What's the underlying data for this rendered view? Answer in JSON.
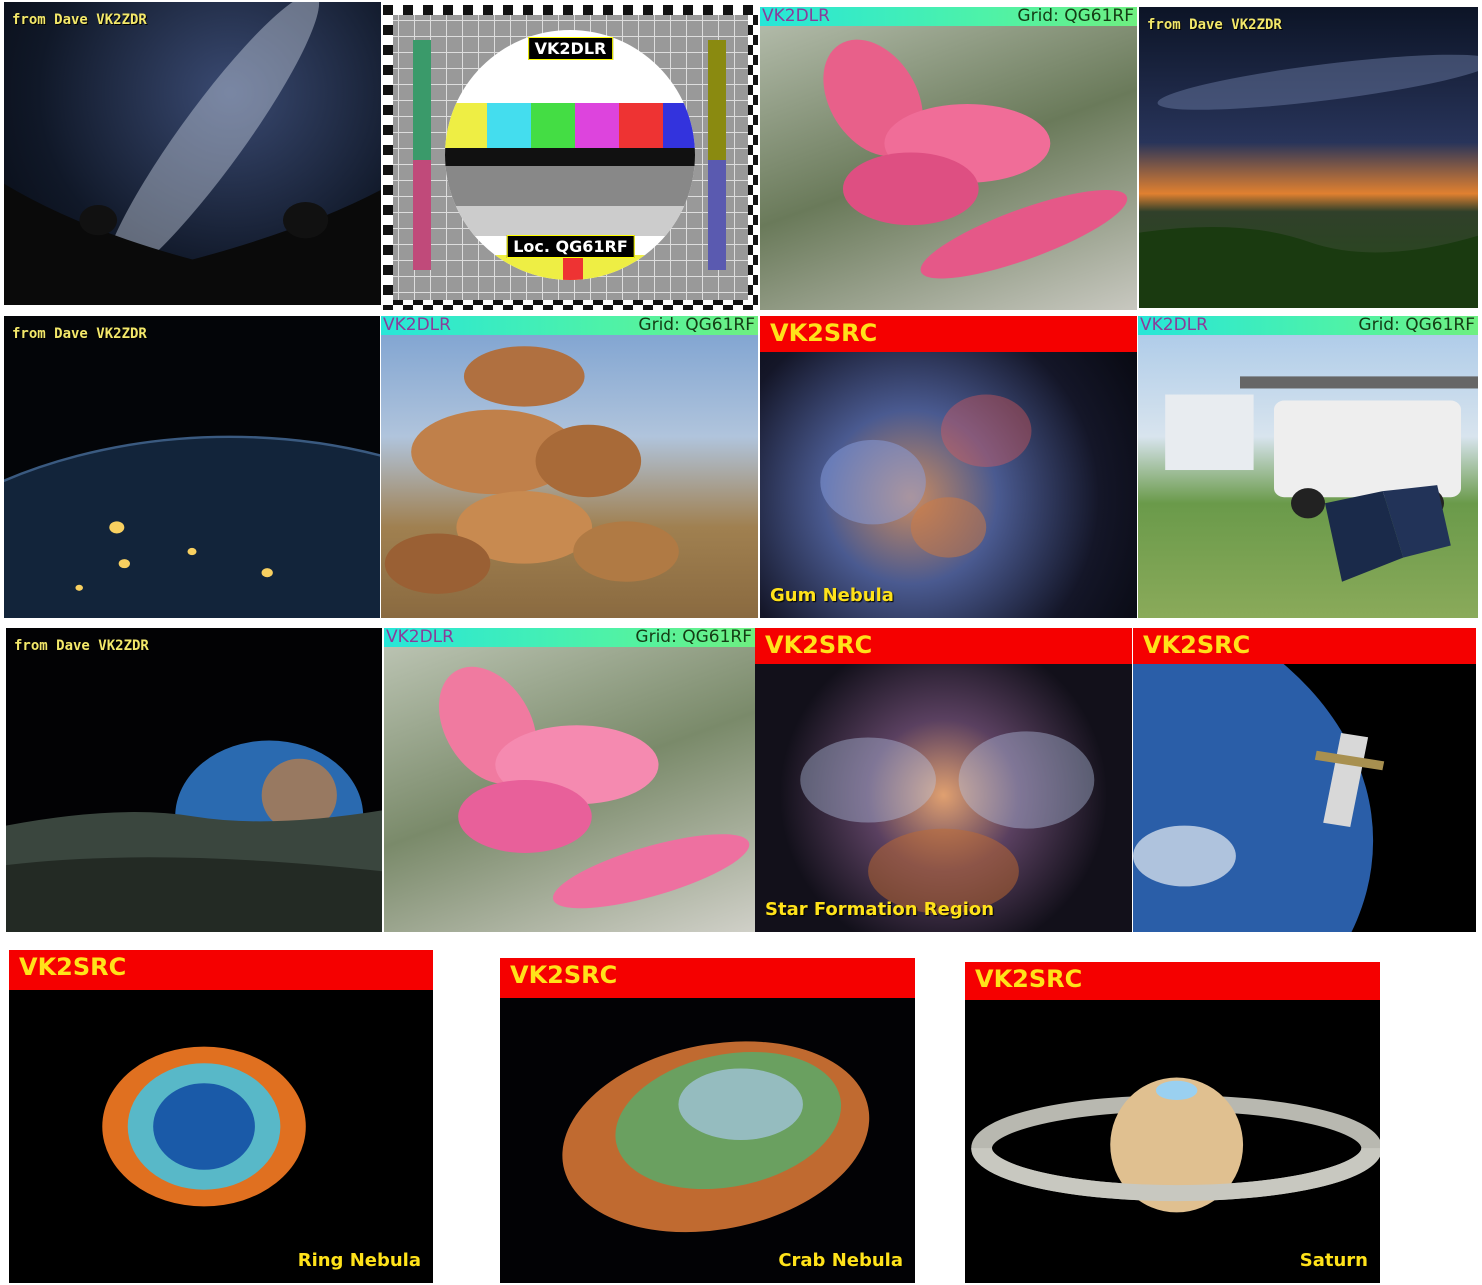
{
  "tiles": [
    {
      "label": "from Dave VK2ZDR"
    },
    {
      "label": "VK2DLR",
      "locator": "Loc. QG61RF"
    },
    {
      "callsign": "VK2DLR",
      "grid": "Grid: QG61RF"
    },
    {
      "label": "from Dave VK2ZDR"
    },
    {
      "label": "from Dave VK2ZDR"
    },
    {
      "callsign": "VK2DLR",
      "grid": "Grid: QG61RF"
    },
    {
      "callsign": "VK2SRC",
      "caption": "Gum Nebula"
    },
    {
      "callsign": "VK2DLR",
      "grid": "Grid: QG61RF"
    },
    {
      "label": "from Dave VK2ZDR"
    },
    {
      "callsign": "VK2DLR",
      "grid": "Grid: QG61RF"
    },
    {
      "callsign": "VK2SRC",
      "caption": "Star Formation Region"
    },
    {
      "callsign": "VK2SRC"
    },
    {
      "callsign": "VK2SRC",
      "caption": "Ring Nebula"
    },
    {
      "callsign": "VK2SRC",
      "caption": "Crab Nebula"
    },
    {
      "callsign": "VK2SRC",
      "caption": "Saturn"
    }
  ]
}
